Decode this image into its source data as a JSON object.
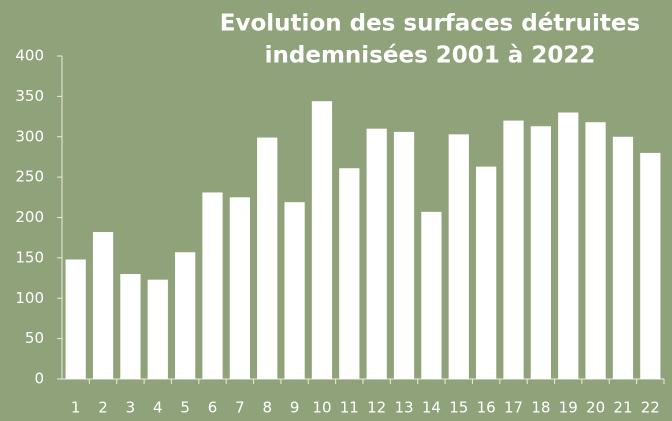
{
  "chart_data": {
    "type": "bar",
    "title": [
      "Evolution des surfaces détruites",
      "indemnisées 2001 à 2022"
    ],
    "categories": [
      "1",
      "2",
      "3",
      "4",
      "5",
      "6",
      "7",
      "8",
      "9",
      "10",
      "11",
      "12",
      "13",
      "14",
      "15",
      "16",
      "17",
      "18",
      "19",
      "20",
      "21",
      "22"
    ],
    "values": [
      148,
      182,
      130,
      123,
      157,
      231,
      225,
      299,
      219,
      344,
      261,
      310,
      306,
      207,
      303,
      263,
      320,
      313,
      330,
      318,
      300,
      280
    ],
    "color": "#ffffff",
    "ylim": [
      0,
      400
    ],
    "yticks": [
      0,
      50,
      100,
      150,
      200,
      250,
      300,
      350,
      400
    ],
    "grid": false
  }
}
